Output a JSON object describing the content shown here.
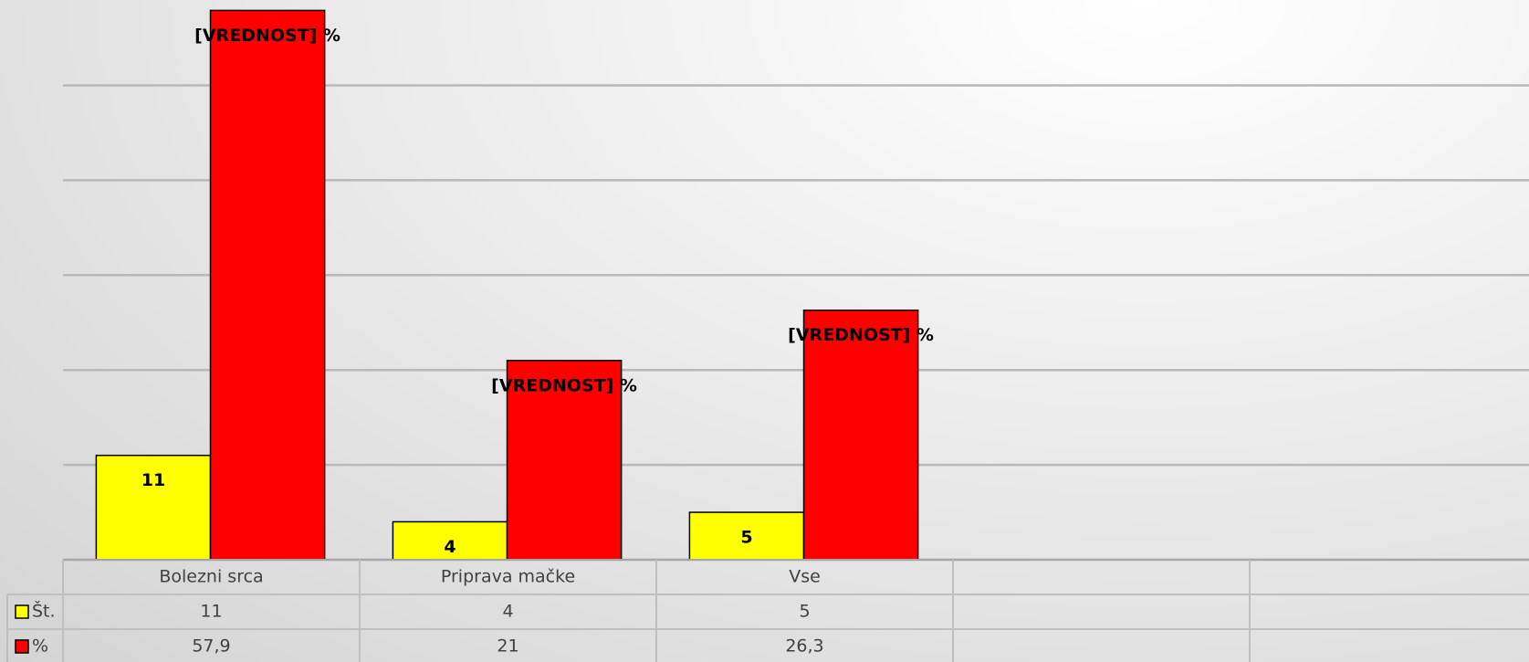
{
  "chart_data": {
    "type": "bar",
    "categories": [
      "Bolezni srca",
      "Priprava mačke",
      "Vse",
      null,
      null
    ],
    "series": [
      {
        "name": "Št.",
        "color": "#ffff00",
        "values": [
          11,
          4,
          5,
          null,
          null
        ]
      },
      {
        "name": "%",
        "color": "#ff0000",
        "values": [
          57.9,
          21,
          26.3,
          null,
          null
        ],
        "value_labels": [
          "[VREDNOST] %",
          "[VREDNOST] %",
          "[VREDNOST] %",
          null,
          null
        ],
        "table_labels": [
          "57,9",
          "21",
          "26,3",
          null,
          null
        ]
      }
    ],
    "ylim": [
      0,
      59
    ],
    "yticks": [
      0,
      10,
      20,
      30,
      40,
      50
    ],
    "grid": true,
    "data_table": true
  }
}
